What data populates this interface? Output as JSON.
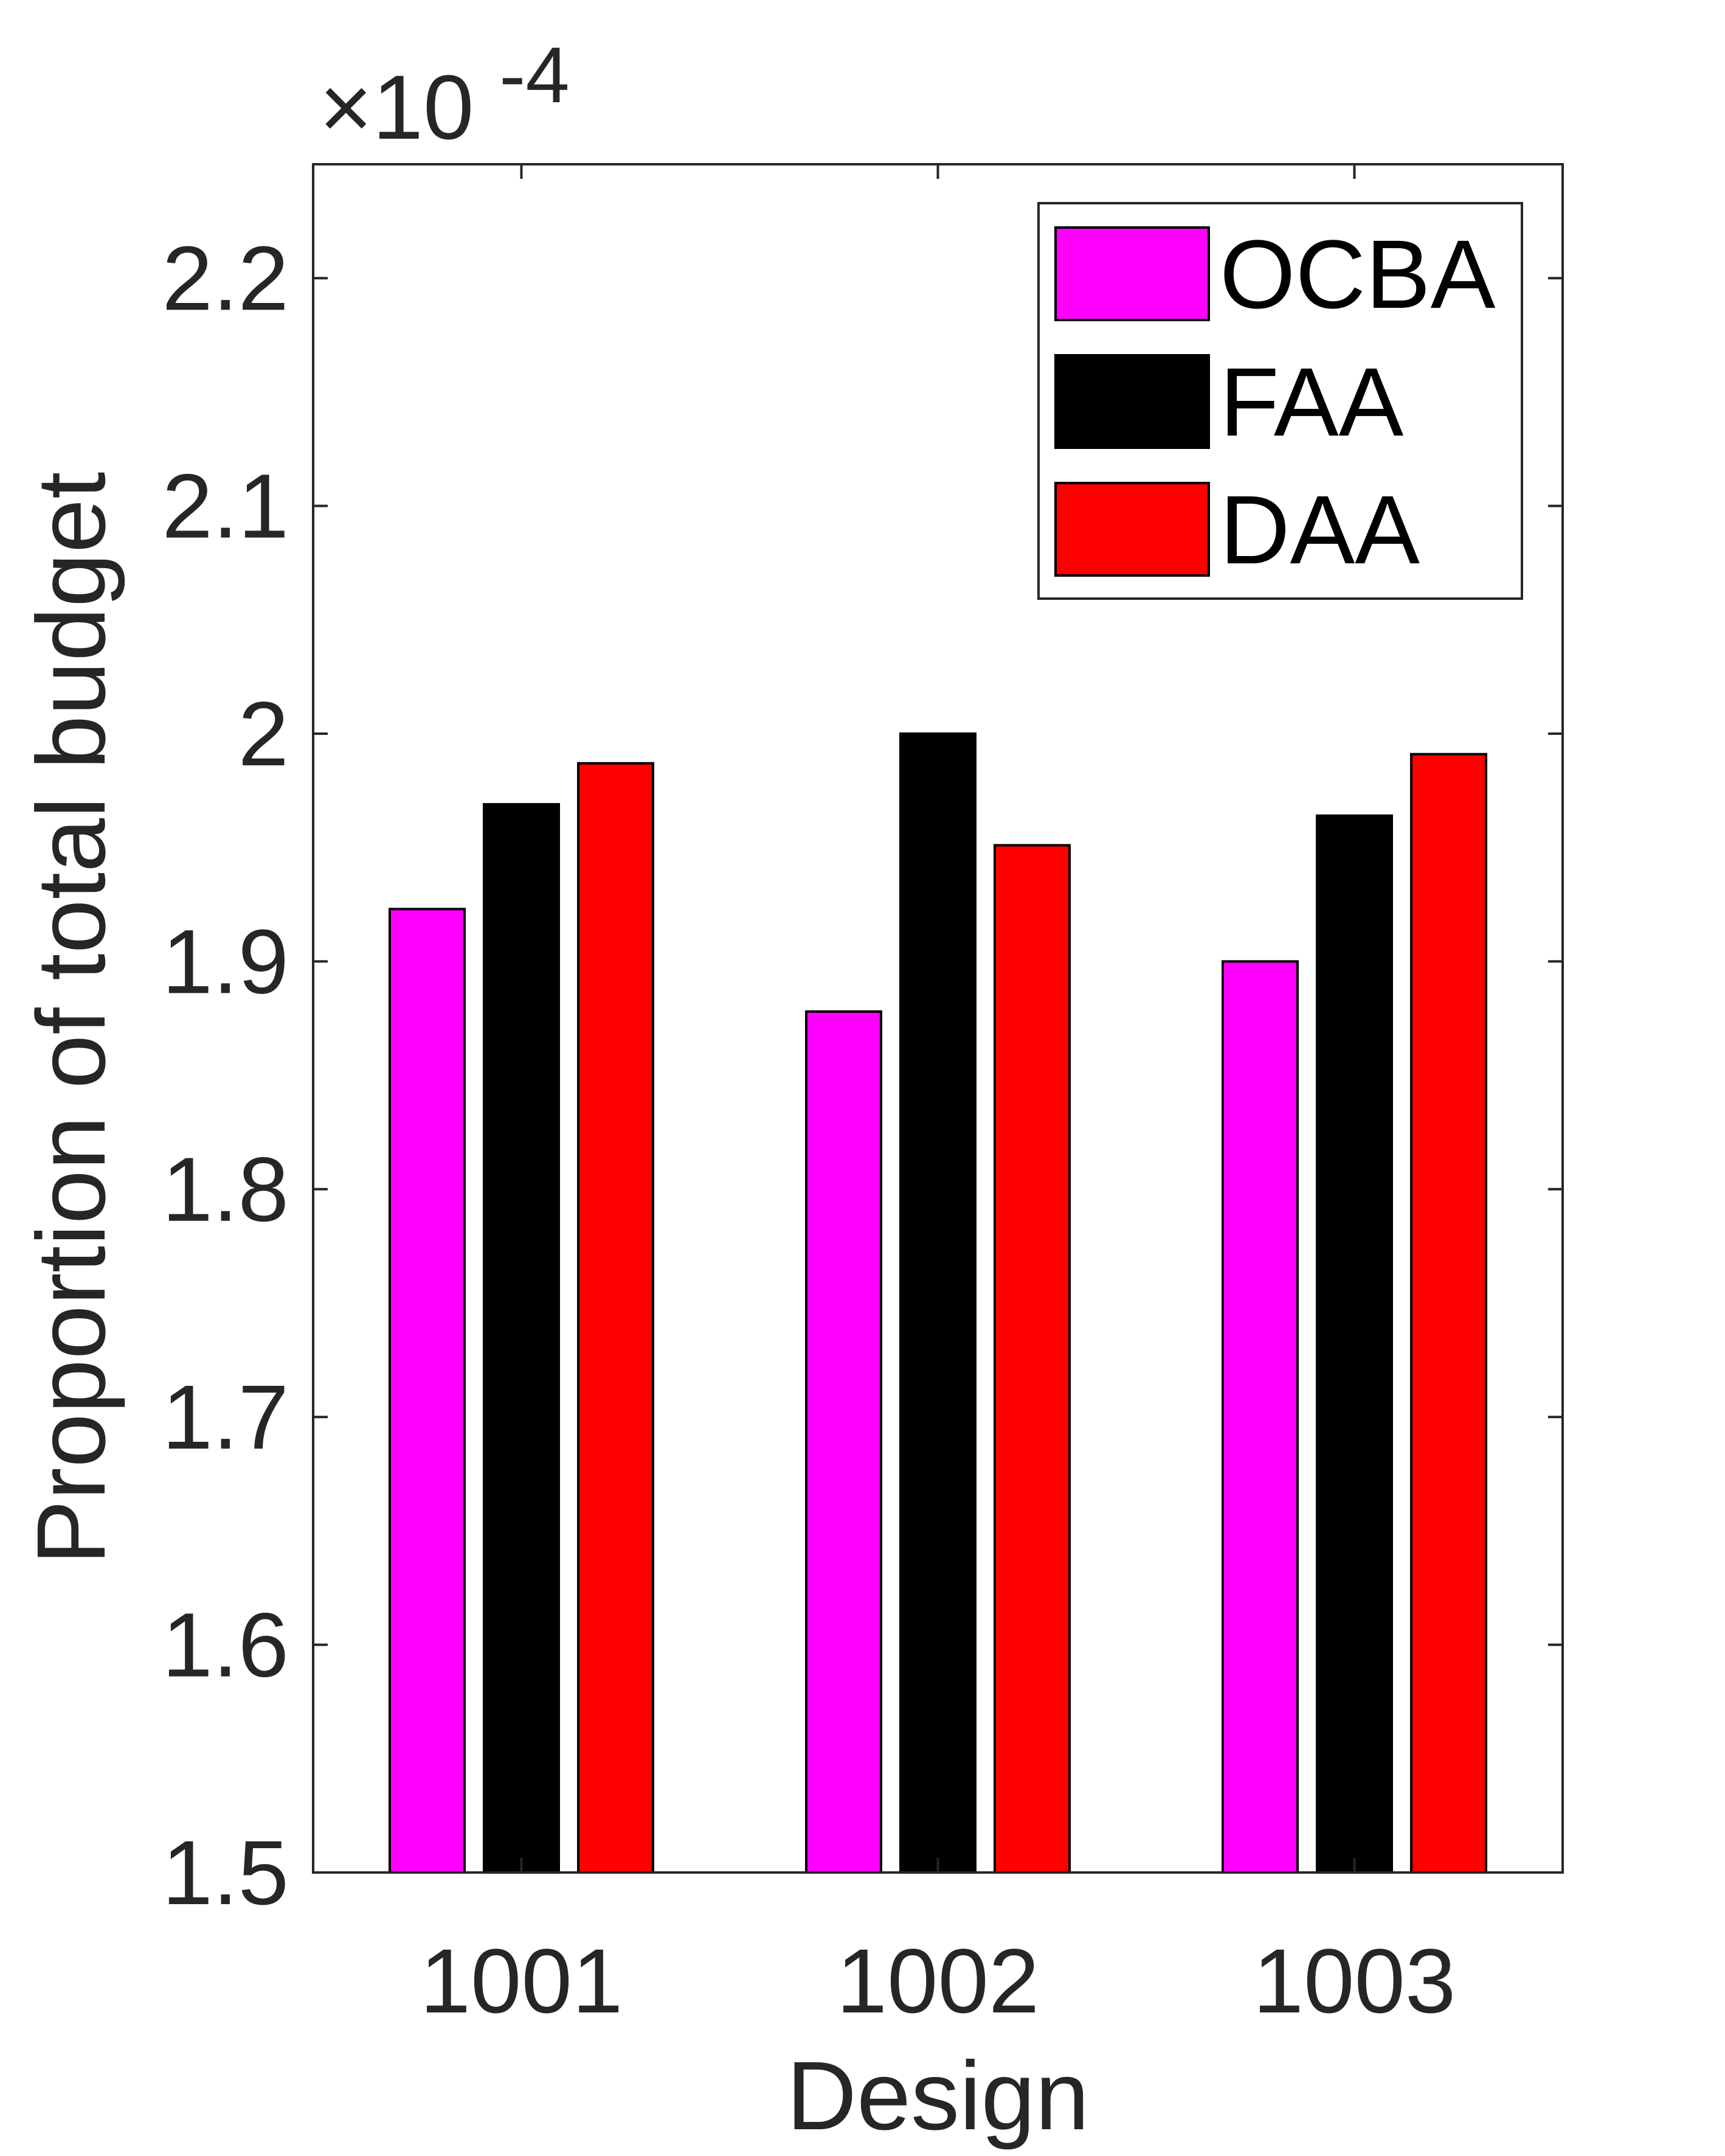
{
  "chart_data": {
    "type": "bar",
    "categories": [
      "1001",
      "1002",
      "1003"
    ],
    "series": [
      {
        "name": "OCBA",
        "color": "#ff00ff",
        "values": [
          1.923,
          1.878,
          1.9
        ]
      },
      {
        "name": "FAA",
        "color": "#000000",
        "values": [
          1.969,
          2.0,
          1.964
        ]
      },
      {
        "name": "DAA",
        "color": "#ff0000",
        "values": [
          1.987,
          1.951,
          1.991
        ]
      }
    ],
    "xlabel": "Design",
    "ylabel": "Proportion of total budget",
    "ylim": [
      1.5,
      2.25
    ],
    "yticks": [
      "1.5",
      "1.6",
      "1.7",
      "1.8",
      "1.9",
      "2",
      "2.1",
      "2.2"
    ],
    "y_exponent_base": "×10",
    "y_exponent_power": "-4",
    "legend_position": "top-right",
    "grid": false
  }
}
